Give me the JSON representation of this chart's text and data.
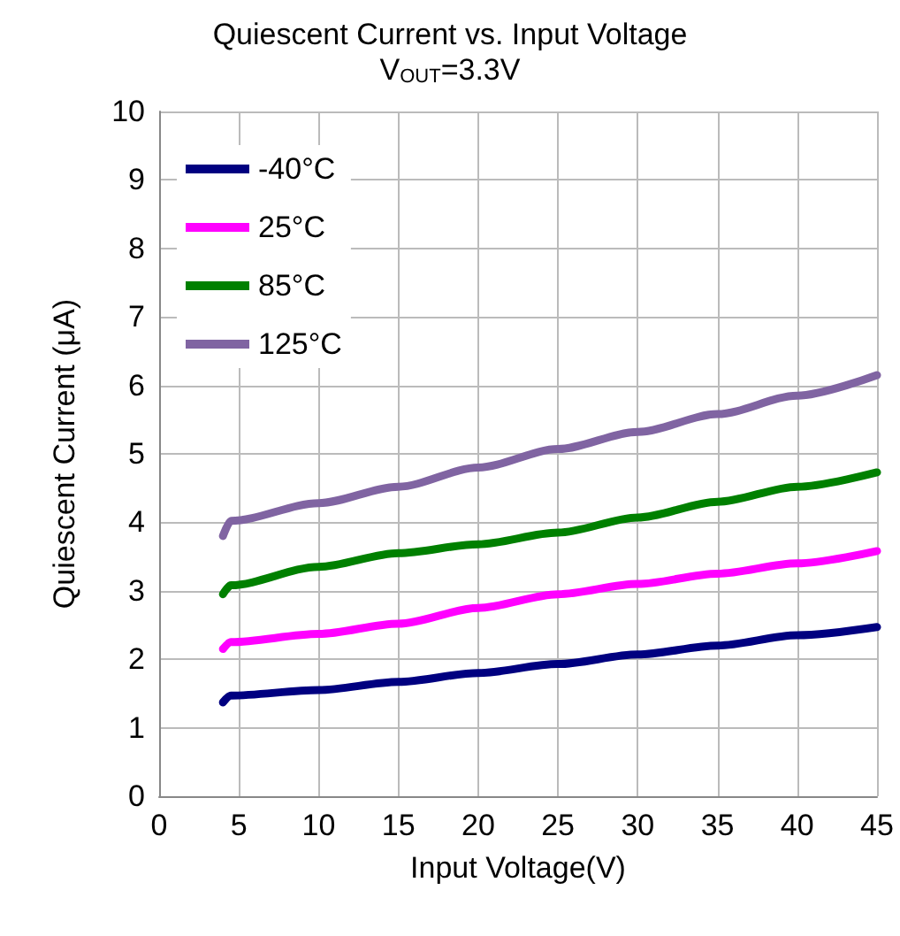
{
  "chart_data": {
    "type": "line",
    "title": "Quiescent Current vs. Input Voltage",
    "subtitle": "V$_{OUT}$=3.3V",
    "xlabel": "Input Voltage(V)",
    "ylabel": "Quiescent Current (μA)",
    "x": [
      4,
      4.5,
      10,
      15,
      20,
      25,
      30,
      35,
      40,
      45
    ],
    "series": [
      {
        "name": "-40°C",
        "color": "#000080",
        "values": [
          1.37,
          1.47,
          1.55,
          1.67,
          1.8,
          1.93,
          2.07,
          2.2,
          2.35,
          2.47
        ]
      },
      {
        "name": "25°C",
        "color": "#ff00ff",
        "values": [
          2.15,
          2.25,
          2.37,
          2.52,
          2.75,
          2.95,
          3.1,
          3.25,
          3.4,
          3.58
        ]
      },
      {
        "name": "85°C",
        "color": "#008000",
        "values": [
          2.95,
          3.08,
          3.35,
          3.55,
          3.68,
          3.85,
          4.07,
          4.3,
          4.52,
          4.73
        ]
      },
      {
        "name": "125°C",
        "color": "#8064a2",
        "values": [
          3.8,
          4.02,
          4.28,
          4.52,
          4.8,
          5.07,
          5.32,
          5.58,
          5.85,
          6.15
        ]
      }
    ],
    "xlim": [
      0,
      45
    ],
    "xticks": [
      0,
      5,
      10,
      15,
      20,
      25,
      30,
      35,
      40,
      45
    ],
    "ylim": [
      0,
      10
    ],
    "yticks": [
      0,
      1,
      2,
      3,
      4,
      5,
      6,
      7,
      8,
      9,
      10
    ],
    "grid": true,
    "legend": "top left",
    "marker": "none",
    "line_style": "solid"
  }
}
